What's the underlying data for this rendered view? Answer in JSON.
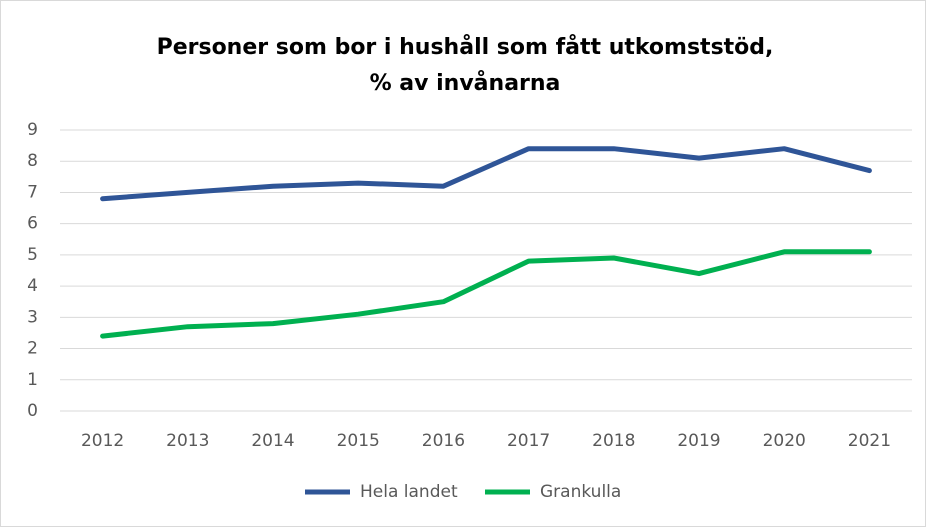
{
  "chart_data": {
    "type": "line",
    "title": [
      "Personer som bor i hushåll som fått utkomststöd,",
      "% av invånarna"
    ],
    "categories": [
      "2012",
      "2013",
      "2014",
      "2015",
      "2016",
      "2017",
      "2018",
      "2019",
      "2020",
      "2021"
    ],
    "series": [
      {
        "name": "Hela landet",
        "color": "#2f5597",
        "values": [
          6.8,
          7.0,
          7.2,
          7.3,
          7.2,
          8.4,
          8.4,
          8.1,
          8.4,
          7.7
        ]
      },
      {
        "name": "Grankulla",
        "color": "#00b050",
        "values": [
          2.4,
          2.7,
          2.8,
          3.1,
          3.5,
          4.8,
          4.9,
          4.4,
          5.1,
          5.1
        ]
      }
    ],
    "ylim": [
      0,
      9
    ],
    "yticks": [
      0,
      1,
      2,
      3,
      4,
      5,
      6,
      7,
      8,
      9
    ],
    "grid": true,
    "legend": "bottom"
  }
}
